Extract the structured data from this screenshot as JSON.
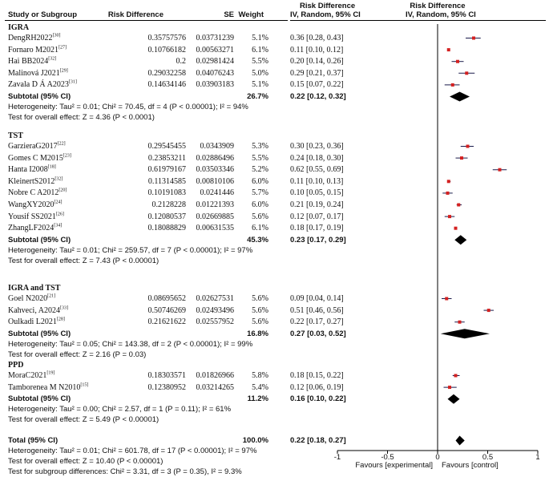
{
  "chart_data": {
    "type": "forest",
    "headers": {
      "study": "Study or Subgroup",
      "rd": "Risk Difference",
      "se": "SE",
      "weight": "Weight",
      "ci_top": "Risk Difference",
      "ci_sub": "IV, Random, 95% CI",
      "plot_top": "Risk Difference",
      "plot_sub": "IV, Random, 95% CI"
    },
    "groups": [
      {
        "name": "IGRA",
        "studies": [
          {
            "name": "DengRH2022",
            "ref": "[30]",
            "rd": "0.35757576",
            "se": "0.03731239",
            "weight": "5.1%",
            "ci": "0.36 [0.28, 0.43]",
            "est": 0.36,
            "lo": 0.28,
            "hi": 0.43
          },
          {
            "name": "Fornaro M2021",
            "ref": "[27]",
            "rd": "0.10766182",
            "se": "0.00563271",
            "weight": "6.1%",
            "ci": "0.11 [0.10, 0.12]",
            "est": 0.11,
            "lo": 0.1,
            "hi": 0.12
          },
          {
            "name": "Hai BB2024",
            "ref": "[32]",
            "rd": "0.2",
            "se": "0.02981424",
            "weight": "5.5%",
            "ci": "0.20 [0.14, 0.26]",
            "est": 0.2,
            "lo": 0.14,
            "hi": 0.26
          },
          {
            "name": "Malinová J2021",
            "ref": "[29]",
            "rd": "0.29032258",
            "se": "0.04076243",
            "weight": "5.0%",
            "ci": "0.29 [0.21, 0.37]",
            "est": 0.29,
            "lo": 0.21,
            "hi": 0.37
          },
          {
            "name": "Zavala D Á A2023",
            "ref": "[31]",
            "rd": "0.14634146",
            "se": "0.03903183",
            "weight": "5.1%",
            "ci": "0.15 [0.07, 0.22]",
            "est": 0.15,
            "lo": 0.07,
            "hi": 0.22
          }
        ],
        "subtotal_label": "Subtotal (95% CI)",
        "subtotal_weight": "26.7%",
        "subtotal_ci": "0.22 [0.12, 0.32]",
        "sub_est": 0.22,
        "sub_lo": 0.12,
        "sub_hi": 0.32,
        "heterogeneity": "Heterogeneity: Tau² = 0.01; Chi² = 70.45, df = 4 (P < 0.00001); I² = 94%",
        "overall": "Test for overall effect: Z = 4.36 (P < 0.0001)"
      },
      {
        "name": "TST",
        "studies": [
          {
            "name": "GarzieraG2017",
            "ref": "[22]",
            "rd": "0.29545455",
            "se": "0.0343909",
            "weight": "5.3%",
            "ci": "0.30 [0.23, 0.36]",
            "est": 0.3,
            "lo": 0.23,
            "hi": 0.36
          },
          {
            "name": "Gomes C M2015",
            "ref": "[23]",
            "rd": "0.23853211",
            "se": "0.02886496",
            "weight": "5.5%",
            "ci": "0.24 [0.18, 0.30]",
            "est": 0.24,
            "lo": 0.18,
            "hi": 0.3
          },
          {
            "name": "Hanta I2008",
            "ref": "[18]",
            "rd": "0.61979167",
            "se": "0.03503346",
            "weight": "5.2%",
            "ci": "0.62 [0.55, 0.69]",
            "est": 0.62,
            "lo": 0.55,
            "hi": 0.69
          },
          {
            "name": "KleinertS2012",
            "ref": "[32]",
            "rd": "0.11314585",
            "se": "0.00810106",
            "weight": "6.0%",
            "ci": "0.11 [0.10, 0.13]",
            "est": 0.11,
            "lo": 0.1,
            "hi": 0.13
          },
          {
            "name": "Nobre C A2012",
            "ref": "[20]",
            "rd": "0.10191083",
            "se": "0.0241446",
            "weight": "5.7%",
            "ci": "0.10 [0.05, 0.15]",
            "est": 0.1,
            "lo": 0.05,
            "hi": 0.15
          },
          {
            "name": "WangXY2020",
            "ref": "[24]",
            "rd": "0.2128228",
            "se": "0.01221393",
            "weight": "6.0%",
            "ci": "0.21 [0.19, 0.24]",
            "est": 0.21,
            "lo": 0.19,
            "hi": 0.24
          },
          {
            "name": "Yousif SS2021",
            "ref": "[26]",
            "rd": "0.12080537",
            "se": "0.02669885",
            "weight": "5.6%",
            "ci": "0.12 [0.07, 0.17]",
            "est": 0.12,
            "lo": 0.07,
            "hi": 0.17
          },
          {
            "name": "ZhangLF2024",
            "ref": "[34]",
            "rd": "0.18088829",
            "se": "0.00631535",
            "weight": "6.1%",
            "ci": "0.18 [0.17, 0.19]",
            "est": 0.18,
            "lo": 0.17,
            "hi": 0.19
          }
        ],
        "subtotal_label": "Subtotal (95% CI)",
        "subtotal_weight": "45.3%",
        "subtotal_ci": "0.23 [0.17, 0.29]",
        "sub_est": 0.23,
        "sub_lo": 0.17,
        "sub_hi": 0.29,
        "heterogeneity": "Heterogeneity: Tau² = 0.01; Chi² = 259.57, df = 7 (P < 0.00001); I² = 97%",
        "overall": "Test for overall effect: Z = 7.43 (P < 0.00001)"
      },
      {
        "name": "IGRA and TST",
        "studies": [
          {
            "name": "Goel N2020",
            "ref": "[21]",
            "rd": "0.08695652",
            "se": "0.02627531",
            "weight": "5.6%",
            "ci": "0.09 [0.04, 0.14]",
            "est": 0.09,
            "lo": 0.04,
            "hi": 0.14
          },
          {
            "name": "Kahveci, A2024",
            "ref": "[33]",
            "rd": "0.50746269",
            "se": "0.02493496",
            "weight": "5.6%",
            "ci": "0.51 [0.46, 0.56]",
            "est": 0.51,
            "lo": 0.46,
            "hi": 0.56
          },
          {
            "name": "Oulkadi L2021",
            "ref": "[28]",
            "rd": "0.21621622",
            "se": "0.02557952",
            "weight": "5.6%",
            "ci": "0.22 [0.17, 0.27]",
            "est": 0.22,
            "lo": 0.17,
            "hi": 0.27
          }
        ],
        "subtotal_label": "Subtotal (95% CI)",
        "subtotal_weight": "16.8%",
        "subtotal_ci": "0.27 [0.03, 0.52]",
        "sub_est": 0.27,
        "sub_lo": 0.03,
        "sub_hi": 0.52,
        "heterogeneity": "Heterogeneity: Tau² = 0.05; Chi² = 143.38, df = 2 (P < 0.00001); I² = 99%",
        "overall": "Test for overall effect: Z = 2.16 (P = 0.03)"
      },
      {
        "name": "PPD",
        "studies": [
          {
            "name": "MoraC2021",
            "ref": "[19]",
            "rd": "0.18303571",
            "se": "0.01826966",
            "weight": "5.8%",
            "ci": "0.18 [0.15, 0.22]",
            "est": 0.18,
            "lo": 0.15,
            "hi": 0.22
          },
          {
            "name": "Tamborenea M N2010",
            "ref": "[15]",
            "rd": "0.12380952",
            "se": "0.03214265",
            "weight": "5.4%",
            "ci": "0.12 [0.06, 0.19]",
            "est": 0.12,
            "lo": 0.06,
            "hi": 0.19
          }
        ],
        "subtotal_label": "Subtotal (95% CI)",
        "subtotal_weight": "11.2%",
        "subtotal_ci": "0.16 [0.10, 0.22]",
        "sub_est": 0.16,
        "sub_lo": 0.1,
        "sub_hi": 0.22,
        "heterogeneity": "Heterogeneity: Tau² = 0.00; Chi² = 2.57, df = 1 (P = 0.11); I² = 61%",
        "overall": "Test for overall effect: Z = 5.49 (P < 0.00001)"
      }
    ],
    "total": {
      "label": "Total (95% CI)",
      "weight": "100.0%",
      "ci": "0.22 [0.18, 0.27]",
      "est": 0.22,
      "lo": 0.18,
      "hi": 0.27,
      "heterogeneity": "Heterogeneity: Tau² = 0.01; Chi² = 601.78, df = 17 (P < 0.00001); I² = 97%",
      "overall": "Test for overall effect: Z = 10.40 (P < 0.00001)",
      "subgroup": "Test for subgroup differences: Chi² = 3.31, df = 3 (P = 0.35), I² = 9.3%"
    },
    "axis": {
      "min": -1,
      "max": 1,
      "ticks": [
        "-1",
        "-0.5",
        "0",
        "0.5",
        "1"
      ],
      "tick_values": [
        -1,
        -0.5,
        0,
        0.5,
        1
      ],
      "left_label": "Favours [experimental]",
      "right_label": "Favours [control]"
    },
    "colors": {
      "square": "#d42020",
      "ci_line": "#1a1a4a",
      "diamond": "#000000"
    }
  }
}
